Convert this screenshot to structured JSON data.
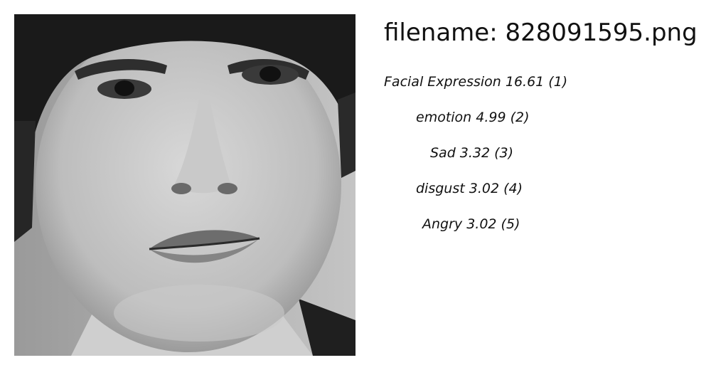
{
  "filename_line": "filename: 828091595.png",
  "photo": {
    "alt": "grayscale face"
  },
  "labels": [
    {
      "text": "Facial Expression 16.61 (1)"
    },
    {
      "text": "emotion  4.99 (2)"
    },
    {
      "text": "Sad  3.32 (3)"
    },
    {
      "text": "disgust  3.02 (4)"
    },
    {
      "text": "Angry  3.02 (5)"
    }
  ]
}
